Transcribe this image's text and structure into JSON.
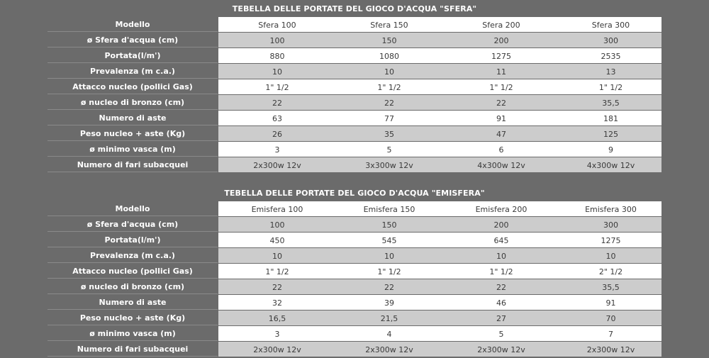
{
  "tables": [
    {
      "title": "TEBELLA DELLE PORTATE DEL GIOCO D'ACQUA \"SFERA\"",
      "rows": [
        {
          "label": "Modello",
          "values": [
            "Sfera 100",
            "Sfera 150",
            "Sfera 200",
            "Sfera 300"
          ]
        },
        {
          "label": "ø Sfera d'acqua (cm)",
          "values": [
            "100",
            "150",
            "200",
            "300"
          ]
        },
        {
          "label": "Portata(l/m')",
          "values": [
            "880",
            "1080",
            "1275",
            "2535"
          ]
        },
        {
          "label": "Prevalenza (m c.a.)",
          "values": [
            "10",
            "10",
            "11",
            "13"
          ]
        },
        {
          "label": "Attacco nucleo (pollici Gas)",
          "values": [
            "1\" 1/2",
            "1\" 1/2",
            "1\" 1/2",
            "1\" 1/2"
          ]
        },
        {
          "label": "ø nucleo di bronzo (cm)",
          "values": [
            "22",
            "22",
            "22",
            "35,5"
          ]
        },
        {
          "label": "Numero di aste",
          "values": [
            "63",
            "77",
            "91",
            "181"
          ]
        },
        {
          "label": "Peso nucleo + aste (Kg)",
          "values": [
            "26",
            "35",
            "47",
            "125"
          ]
        },
        {
          "label": "ø minimo vasca (m)",
          "values": [
            "3",
            "5",
            "6",
            "9"
          ]
        },
        {
          "label": "Numero di fari subacquei",
          "values": [
            "2x300w 12v",
            "3x300w 12v",
            "4x300w 12v",
            "4x300w 12v"
          ]
        }
      ]
    },
    {
      "title": "TEBELLA DELLE PORTATE DEL GIOCO D'ACQUA \"EMISFERA\"",
      "rows": [
        {
          "label": "Modello",
          "values": [
            "Emisfera 100",
            "Emisfera 150",
            "Emisfera 200",
            "Emisfera 300"
          ]
        },
        {
          "label": "ø Sfera d'acqua (cm)",
          "values": [
            "100",
            "150",
            "200",
            "300"
          ]
        },
        {
          "label": "Portata(l/m')",
          "values": [
            "450",
            "545",
            "645",
            "1275"
          ]
        },
        {
          "label": "Prevalenza (m c.a.)",
          "values": [
            "10",
            "10",
            "10",
            "10"
          ]
        },
        {
          "label": "Attacco nucleo (pollici Gas)",
          "values": [
            "1\" 1/2",
            "1\" 1/2",
            "1\" 1/2",
            "2\" 1/2"
          ]
        },
        {
          "label": "ø nucleo di bronzo (cm)",
          "values": [
            "22",
            "22",
            "22",
            "35,5"
          ]
        },
        {
          "label": "Numero di aste",
          "values": [
            "32",
            "39",
            "46",
            "91"
          ]
        },
        {
          "label": "Peso nucleo + aste (Kg)",
          "values": [
            "16,5",
            "21,5",
            "27",
            "70"
          ]
        },
        {
          "label": "ø minimo vasca (m)",
          "values": [
            "3",
            "4",
            "5",
            "7"
          ]
        },
        {
          "label": "Numero di fari subacquei",
          "values": [
            "2x300w 12v",
            "2x300w 12v",
            "2x300w 12v",
            "2x300w 12v"
          ]
        }
      ]
    }
  ]
}
